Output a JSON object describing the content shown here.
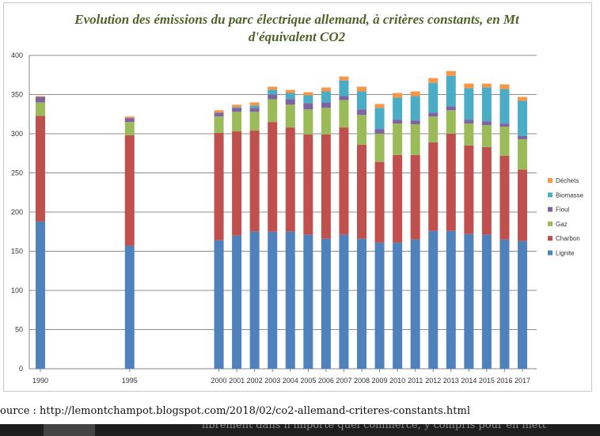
{
  "chart_data": {
    "type": "bar",
    "stacked": true,
    "title": "Evolution des émissions du parc électrique allemand, à critères constants, en Mt d'équivalent CO2",
    "xlabel": "",
    "ylabel": "",
    "ylim": [
      0,
      400
    ],
    "yticks": [
      0,
      50,
      100,
      150,
      200,
      250,
      300,
      350,
      400
    ],
    "grid": true,
    "legend_position": "right",
    "categories": [
      "1990",
      "1995",
      "2000",
      "2001",
      "2002",
      "2003",
      "2004",
      "2005",
      "2006",
      "2007",
      "2008",
      "2009",
      "2010",
      "2011",
      "2012",
      "2013",
      "2014",
      "2015",
      "2016",
      "2017"
    ],
    "series": [
      {
        "name": "Lignite",
        "color": "#4f81bd",
        "values": [
          188,
          157,
          164,
          170,
          175,
          175,
          175,
          171,
          166,
          171,
          166,
          161,
          161,
          165,
          176,
          176,
          172,
          171,
          165,
          163
        ]
      },
      {
        "name": "Charbon",
        "color": "#c0504d",
        "values": [
          135,
          141,
          137,
          133,
          129,
          140,
          133,
          128,
          133,
          137,
          120,
          103,
          112,
          108,
          113,
          124,
          113,
          112,
          107,
          91
        ]
      },
      {
        "name": "Gaz",
        "color": "#9bbb59",
        "values": [
          17,
          17,
          21,
          25,
          24,
          29,
          29,
          32,
          34,
          35,
          38,
          36,
          40,
          39,
          33,
          30,
          28,
          28,
          37,
          39
        ]
      },
      {
        "name": "Fioul",
        "color": "#8064a2",
        "values": [
          7,
          5,
          5,
          5,
          5,
          6,
          7,
          8,
          7,
          5,
          7,
          6,
          5,
          5,
          5,
          5,
          5,
          5,
          4,
          4
        ]
      },
      {
        "name": "Biomasse",
        "color": "#4bacc6",
        "values": [
          0,
          0,
          0,
          1,
          3,
          6,
          8,
          10,
          14,
          20,
          23,
          27,
          28,
          31,
          38,
          39,
          40,
          43,
          44,
          45
        ]
      },
      {
        "name": "Déchets",
        "color": "#f79646",
        "values": [
          1,
          2,
          3,
          3,
          4,
          4,
          4,
          4,
          5,
          5,
          6,
          5,
          6,
          6,
          6,
          6,
          6,
          5,
          6,
          5
        ]
      }
    ]
  },
  "source_text": "ource : http://lemontchampot.blogspot.com/2018/02/co2-allemand-criteres-constants.html",
  "bottom_text": "librement dans n'importe quel commerce, y compris pour en mett"
}
